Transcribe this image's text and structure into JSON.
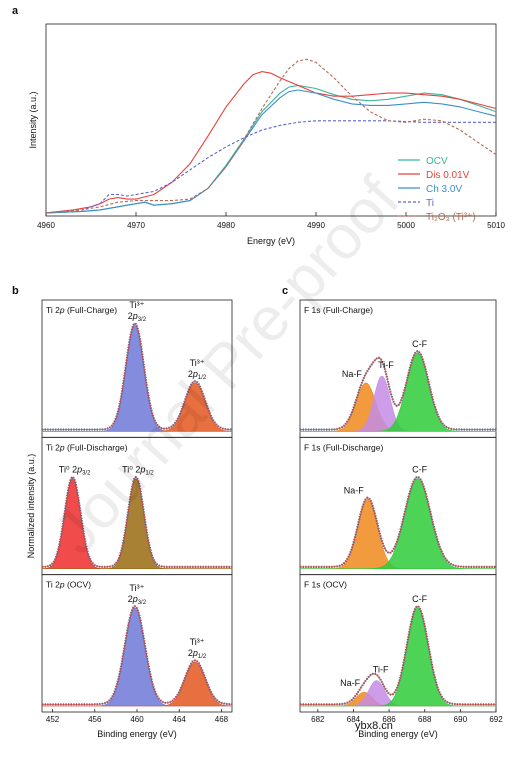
{
  "panels": {
    "a": "a",
    "b": "b",
    "c": "c"
  },
  "watermark": "Journal Pre-proof",
  "site_watermark": "ybx8.cn",
  "chart_data": [
    {
      "id": "a",
      "type": "line",
      "xlabel": "Energy (eV)",
      "ylabel": "Intensity (a.u.)",
      "xlim": [
        4960,
        5010
      ],
      "ylim": [
        0,
        1.25
      ],
      "xticks": [
        "4960",
        "4970",
        "4980",
        "4990",
        "5000",
        "5010"
      ],
      "legend_position": "lower-right",
      "series": [
        {
          "name": "OCV",
          "color": "#3cb59a",
          "dash": false,
          "x": [
            4960,
            4964,
            4966,
            4968,
            4969,
            4970,
            4971,
            4972,
            4974,
            4976,
            4978,
            4980,
            4982,
            4984,
            4986,
            4987,
            4988,
            4990,
            4992,
            4994,
            4996,
            4998,
            5000,
            5002,
            5004,
            5006,
            5008,
            5010
          ],
          "y": [
            0.02,
            0.03,
            0.04,
            0.06,
            0.07,
            0.08,
            0.09,
            0.07,
            0.08,
            0.1,
            0.18,
            0.33,
            0.5,
            0.68,
            0.8,
            0.84,
            0.85,
            0.83,
            0.79,
            0.76,
            0.75,
            0.76,
            0.78,
            0.8,
            0.79,
            0.76,
            0.72,
            0.68
          ]
        },
        {
          "name": "Dis 0.01V",
          "color": "#e8413c",
          "dash": false,
          "x": [
            4960,
            4963,
            4965,
            4966,
            4967,
            4968,
            4969,
            4970,
            4972,
            4974,
            4976,
            4978,
            4980,
            4982,
            4983,
            4984,
            4985,
            4986,
            4988,
            4990,
            4992,
            4994,
            4996,
            4998,
            5000,
            5002,
            5004,
            5006,
            5008,
            5010
          ],
          "y": [
            0.02,
            0.04,
            0.06,
            0.08,
            0.11,
            0.12,
            0.11,
            0.11,
            0.14,
            0.22,
            0.34,
            0.52,
            0.71,
            0.86,
            0.92,
            0.94,
            0.93,
            0.9,
            0.85,
            0.8,
            0.78,
            0.78,
            0.79,
            0.8,
            0.8,
            0.79,
            0.78,
            0.76,
            0.73,
            0.7
          ]
        },
        {
          "name": "Ch 3.0V",
          "color": "#3d8fcb",
          "dash": false,
          "x": [
            4960,
            4964,
            4966,
            4968,
            4969,
            4970,
            4971,
            4972,
            4974,
            4976,
            4978,
            4980,
            4982,
            4984,
            4986,
            4987,
            4988,
            4990,
            4992,
            4994,
            4996,
            4998,
            5000,
            5002,
            5004,
            5006,
            5008,
            5010
          ],
          "y": [
            0.02,
            0.03,
            0.04,
            0.06,
            0.07,
            0.08,
            0.09,
            0.07,
            0.08,
            0.1,
            0.18,
            0.32,
            0.49,
            0.66,
            0.77,
            0.81,
            0.82,
            0.8,
            0.76,
            0.73,
            0.72,
            0.72,
            0.73,
            0.74,
            0.73,
            0.71,
            0.68,
            0.65
          ]
        },
        {
          "name": "Ti",
          "color": "#5a64d2",
          "dash": true,
          "x": [
            4960,
            4964,
            4966,
            4967,
            4968,
            4969,
            4970,
            4972,
            4974,
            4976,
            4978,
            4980,
            4982,
            4984,
            4986,
            4988,
            4990,
            4994,
            4998,
            5002,
            5006,
            5010
          ],
          "y": [
            0.02,
            0.04,
            0.08,
            0.14,
            0.14,
            0.13,
            0.14,
            0.16,
            0.22,
            0.3,
            0.38,
            0.45,
            0.51,
            0.56,
            0.59,
            0.61,
            0.62,
            0.62,
            0.62,
            0.61,
            0.61,
            0.61
          ]
        },
        {
          "name": "Ti₂O₃ (Ti³⁺)",
          "color": "#b86b55",
          "dash": true,
          "x": [
            4960,
            4964,
            4966,
            4968,
            4970,
            4972,
            4974,
            4976,
            4978,
            4980,
            4982,
            4984,
            4986,
            4987,
            4988,
            4989,
            4990,
            4992,
            4994,
            4996,
            4998,
            5000,
            5002,
            5004,
            5006,
            5008,
            5010
          ],
          "y": [
            0.02,
            0.04,
            0.06,
            0.09,
            0.1,
            0.1,
            0.1,
            0.11,
            0.18,
            0.32,
            0.5,
            0.7,
            0.88,
            0.96,
            1.01,
            1.02,
            1.0,
            0.9,
            0.78,
            0.68,
            0.62,
            0.61,
            0.63,
            0.62,
            0.56,
            0.48,
            0.4
          ]
        }
      ]
    },
    {
      "id": "b",
      "type": "area",
      "xlabel": "Binding energy (eV)",
      "ylabel": "Normalized intensity (a.u.)",
      "xlim": [
        451,
        469
      ],
      "xticks": [
        "452",
        "456",
        "460",
        "464",
        "468"
      ],
      "subplots": [
        {
          "title": "Ti 2p (Full-Charge)",
          "peaks": [
            {
              "label": [
                "Ti³⁺",
                "2p3/2"
              ],
              "center": 459.8,
              "height": 0.92,
              "width": 0.85,
              "color": "#6e78d8"
            },
            {
              "label": [
                "Ti³⁺",
                "2p1/2"
              ],
              "center": 465.5,
              "height": 0.42,
              "width": 0.95,
              "color": "#e4561e"
            }
          ]
        },
        {
          "title": "Ti 2p (Full-Discharge)",
          "peaks": [
            {
              "label": [
                "Ti⁰ 2p3/2"
              ],
              "center": 453.9,
              "height": 0.78,
              "width": 0.75,
              "color": "#ee2b2b"
            },
            {
              "label": [
                "Ti⁰ 2p1/2"
              ],
              "center": 459.9,
              "height": 0.78,
              "width": 0.75,
              "color": "#9a6b12"
            }
          ]
        },
        {
          "title": "Ti 2p (OCV)",
          "peaks": [
            {
              "label": [
                "Ti³⁺",
                "2p3/2"
              ],
              "center": 459.8,
              "height": 0.85,
              "width": 0.95,
              "color": "#6e78d8"
            },
            {
              "label": [
                "Ti³⁺",
                "2p1/2"
              ],
              "center": 465.5,
              "height": 0.38,
              "width": 0.95,
              "color": "#e4561e"
            }
          ]
        }
      ]
    },
    {
      "id": "c",
      "type": "area",
      "xlabel": "Binding energy (eV)",
      "xlim": [
        681,
        692
      ],
      "xticks": [
        "682",
        "684",
        "686",
        "688",
        "690",
        "692"
      ],
      "subplots": [
        {
          "title": "F 1s (Full-Charge)",
          "peaks": [
            {
              "label": [
                "Na-F"
              ],
              "center": 684.7,
              "height": 0.42,
              "width": 0.55,
              "color": "#f08a1c"
            },
            {
              "label": [
                "Ti-F"
              ],
              "center": 685.6,
              "height": 0.48,
              "width": 0.45,
              "color": "#c48ce6"
            },
            {
              "label": [
                "C-F"
              ],
              "center": 687.6,
              "height": 0.68,
              "width": 0.62,
              "color": "#2ecc3a"
            }
          ]
        },
        {
          "title": "F 1s (Full-Discharge)",
          "peaks": [
            {
              "label": [
                "Na-F"
              ],
              "center": 684.8,
              "height": 0.6,
              "width": 0.55,
              "color": "#f08a1c"
            },
            {
              "label": [
                "C-F"
              ],
              "center": 687.6,
              "height": 0.78,
              "width": 0.72,
              "color": "#2ecc3a"
            }
          ]
        },
        {
          "title": "F 1s (OCV)",
          "peaks": [
            {
              "label": [
                "Na-F"
              ],
              "center": 684.6,
              "height": 0.12,
              "width": 0.45,
              "color": "#f08a1c"
            },
            {
              "label": [
                "Ti-F"
              ],
              "center": 685.3,
              "height": 0.22,
              "width": 0.45,
              "color": "#c48ce6"
            },
            {
              "label": [
                "C-F"
              ],
              "center": 687.6,
              "height": 0.85,
              "width": 0.6,
              "color": "#2ecc3a"
            }
          ]
        }
      ]
    }
  ]
}
